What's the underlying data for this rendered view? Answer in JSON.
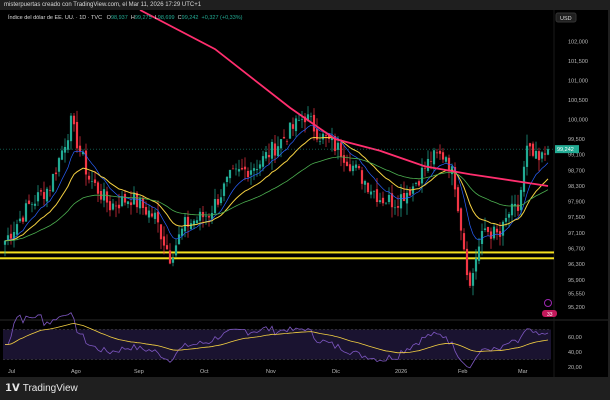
{
  "header": "misterpuertas creado con TradingView.com, el Mar 11, 2026 17:29 UTC+1",
  "legend": {
    "symbol": "Índice del dólar de EE. UU. · 1D · TVC",
    "o_label": "O",
    "o": "98,937",
    "h_label": "H",
    "h": "99,275",
    "l_label": "L",
    "l": "98,699",
    "c_label": "C",
    "c": "99,242",
    "change": "+0,327 (+0,33%)"
  },
  "currency": "USD",
  "logo": "TradingView",
  "badge": "33",
  "colors": {
    "up": "#22ab94",
    "down": "#f23645",
    "ma200": "#ff2e6e",
    "ma20": "#f5d142",
    "ma50": "#4caf50",
    "ma10": "#2962ff",
    "level": "#f5e020",
    "rsi": "#7e57c2"
  },
  "chart_data": {
    "type": "candlestick",
    "title": "Índice del dólar de EE. UU. · 1D · TVC",
    "last_price": "99,242",
    "y_ticks": [
      "102,000",
      "101,500",
      "101,000",
      "100,500",
      "100,000",
      "99,500",
      "99,100",
      "98,700",
      "98,300",
      "97,900",
      "97,500",
      "97,100",
      "96,700",
      "96,300",
      "95,900",
      "95,550",
      "95,200"
    ],
    "y_tick_values": [
      102,
      101.5,
      101,
      100.5,
      100,
      99.5,
      99.1,
      98.7,
      98.3,
      97.9,
      97.5,
      97.1,
      96.7,
      96.3,
      95.9,
      95.55,
      95.2
    ],
    "ylim": [
      95.0,
      102.8
    ],
    "x_ticks": [
      "Jul",
      "Ago",
      "Sep",
      "Oct",
      "Nov",
      "Dic",
      "2026",
      "Feb",
      "Mar"
    ],
    "x_tick_index": [
      1,
      22,
      43,
      65,
      87,
      109,
      130,
      151,
      171
    ],
    "close_keypoints": [
      [
        0,
        96.9
      ],
      [
        8,
        97.8
      ],
      [
        15,
        98.3
      ],
      [
        22,
        99.9
      ],
      [
        28,
        98.5
      ],
      [
        35,
        97.8
      ],
      [
        42,
        98.0
      ],
      [
        50,
        97.5
      ],
      [
        55,
        96.5
      ],
      [
        60,
        97.3
      ],
      [
        68,
        97.6
      ],
      [
        75,
        98.5
      ],
      [
        85,
        98.9
      ],
      [
        95,
        99.7
      ],
      [
        100,
        100.1
      ],
      [
        105,
        99.6
      ],
      [
        112,
        99.2
      ],
      [
        118,
        98.6
      ],
      [
        125,
        98.0
      ],
      [
        130,
        97.9
      ],
      [
        136,
        98.3
      ],
      [
        142,
        99.0
      ],
      [
        147,
        99.1
      ],
      [
        150,
        98.4
      ],
      [
        152,
        97.3
      ],
      [
        155,
        95.7
      ],
      [
        157,
        96.5
      ],
      [
        160,
        97.2
      ],
      [
        165,
        97.0
      ],
      [
        168,
        97.6
      ],
      [
        171,
        97.7
      ],
      [
        174,
        99.2
      ],
      [
        178,
        98.9
      ],
      [
        181,
        99.242
      ]
    ],
    "ma200_keypoints": [
      [
        45,
        102.8
      ],
      [
        70,
        101.8
      ],
      [
        95,
        100.3
      ],
      [
        110,
        99.5
      ],
      [
        125,
        99.2
      ],
      [
        140,
        98.8
      ],
      [
        155,
        98.6
      ],
      [
        181,
        98.3
      ]
    ],
    "levels": [
      96.6,
      96.45
    ],
    "rsi": {
      "ticks": [
        "60,00",
        "40,00",
        "20,00"
      ],
      "tick_values": [
        60,
        40,
        20
      ],
      "band": [
        30,
        70
      ]
    }
  }
}
